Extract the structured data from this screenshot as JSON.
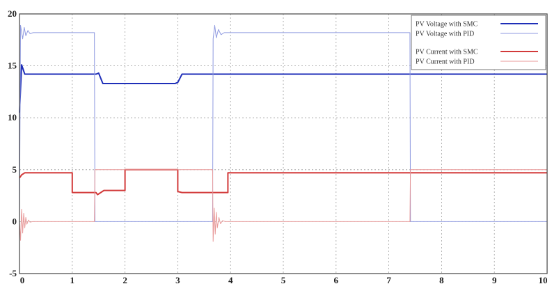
{
  "chart_data": {
    "type": "line",
    "xlim": [
      0,
      10
    ],
    "ylim": [
      -5,
      20
    ],
    "x_ticks": [
      0,
      1,
      2,
      3,
      4,
      5,
      6,
      7,
      8,
      9,
      10
    ],
    "y_ticks": [
      -5,
      0,
      5,
      10,
      15,
      20
    ],
    "grid": true,
    "legend_position": "top-right",
    "series": [
      {
        "name": "PV Voltage with SMC",
        "color": "#1f2fb8",
        "x": [
          0,
          0.04,
          0.1,
          1.45,
          1.5,
          1.58,
          2.0,
          2.95,
          3.0,
          3.08,
          10
        ],
        "y": [
          10.5,
          15.1,
          14.2,
          14.2,
          14.3,
          13.3,
          13.3,
          13.3,
          13.4,
          14.2,
          14.2
        ]
      },
      {
        "name": "PV Voltage with PID",
        "color": "#8f9ae0",
        "x": [
          0,
          0.02,
          0.06,
          0.09,
          0.12,
          0.16,
          0.2,
          0.26,
          1.42,
          1.43,
          3.66,
          3.67,
          3.7,
          3.73,
          3.77,
          3.82,
          3.88,
          7.4,
          7.41,
          10
        ],
        "y": [
          0,
          18.9,
          17.6,
          18.7,
          17.9,
          18.4,
          18.1,
          18.2,
          18.2,
          0,
          0,
          17.6,
          18.9,
          17.7,
          18.5,
          18.0,
          18.2,
          18.2,
          0,
          0
        ]
      },
      {
        "name": "PV Current with SMC",
        "color": "#d23a3a",
        "x": [
          0,
          0.04,
          0.1,
          1.0,
          1.0,
          1.45,
          1.48,
          1.6,
          2.0,
          2.0,
          3.0,
          3.0,
          3.08,
          3.95,
          3.95,
          10
        ],
        "y": [
          4.2,
          4.5,
          4.7,
          4.7,
          2.8,
          2.8,
          2.6,
          3.0,
          3.0,
          5.0,
          5.0,
          2.9,
          2.8,
          2.8,
          4.7,
          4.7
        ]
      },
      {
        "name": "PV Current with PID",
        "color": "#e89a9a",
        "x": [
          0,
          0.02,
          0.04,
          0.06,
          0.08,
          0.1,
          0.12,
          0.14,
          0.17,
          0.2,
          0.25,
          1.42,
          1.43,
          3.66,
          3.67,
          3.69,
          3.71,
          3.73,
          3.75,
          3.78,
          3.81,
          3.85,
          3.9,
          7.4,
          7.41,
          10
        ],
        "y": [
          0,
          -1.8,
          1.2,
          -1.1,
          0.8,
          -0.6,
          0.4,
          -0.25,
          0.15,
          -0.05,
          0,
          0,
          5.0,
          5.0,
          -1.9,
          1.3,
          -1.2,
          0.9,
          -0.6,
          0.4,
          -0.2,
          0.1,
          0,
          0,
          5.0,
          5.0
        ]
      }
    ]
  }
}
